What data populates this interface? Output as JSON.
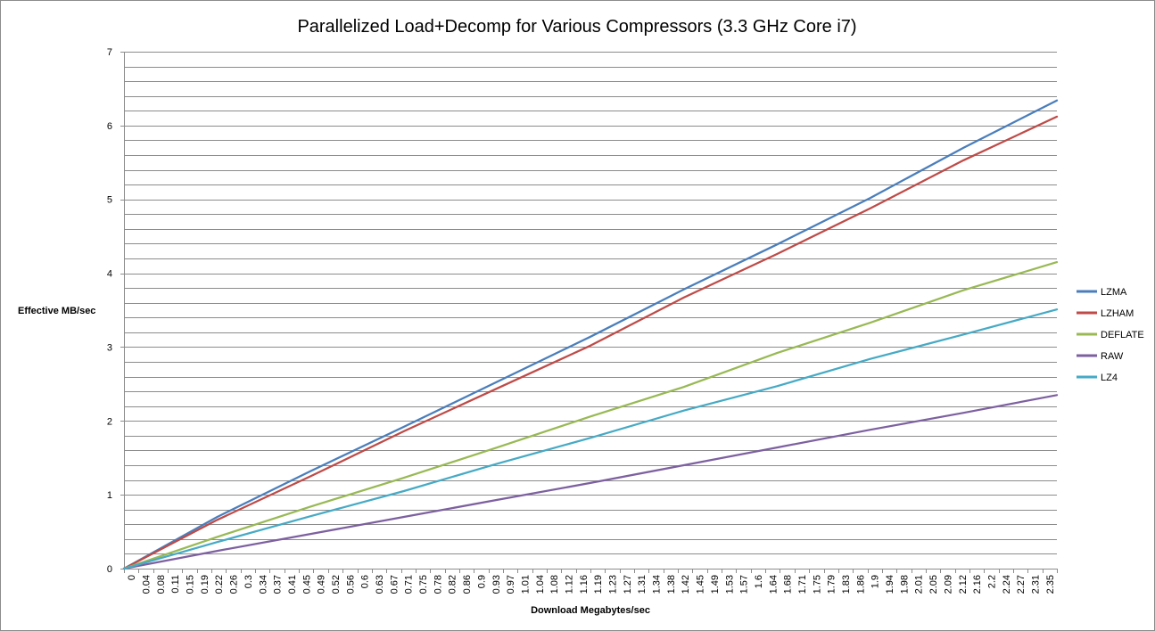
{
  "chart_data": {
    "type": "line",
    "title": "Parallelized Load+Decomp for Various Compressors (3.3 GHz Core i7)",
    "xlabel": "Download Megabytes/sec",
    "ylabel": "Effective MB/sec",
    "ylim": [
      0,
      7
    ],
    "yticks": [
      0,
      1,
      2,
      3,
      4,
      5,
      6,
      7
    ],
    "y_minor_step": 0.2,
    "xlim": [
      0,
      2.35
    ],
    "xtick_labels": [
      "0",
      "0.04",
      "0.08",
      "0.11",
      "0.15",
      "0.19",
      "0.22",
      "0.26",
      "0.3",
      "0.34",
      "0.37",
      "0.41",
      "0.45",
      "0.49",
      "0.52",
      "0.56",
      "0.6",
      "0.63",
      "0.67",
      "0.71",
      "0.75",
      "0.78",
      "0.82",
      "0.86",
      "0.9",
      "0.93",
      "0.97",
      "1.01",
      "1.04",
      "1.08",
      "1.12",
      "1.16",
      "1.19",
      "1.23",
      "1.27",
      "1.31",
      "1.34",
      "1.38",
      "1.42",
      "1.45",
      "1.49",
      "1.53",
      "1.57",
      "1.6",
      "1.64",
      "1.68",
      "1.71",
      "1.75",
      "1.79",
      "1.83",
      "1.86",
      "1.9",
      "1.94",
      "1.98",
      "2.01",
      "2.05",
      "2.09",
      "2.12",
      "2.16",
      "2.2",
      "2.24",
      "2.27",
      "2.31",
      "2.35"
    ],
    "legend_position": "right",
    "series": [
      {
        "name": "LZMA",
        "color": "#4a7ebb",
        "x": [
          0,
          0.235,
          0.47,
          0.705,
          0.94,
          1.175,
          1.41,
          1.645,
          1.88,
          2.115,
          2.35
        ],
        "values": [
          0,
          0.7,
          1.32,
          1.92,
          2.53,
          3.14,
          3.78,
          4.39,
          5.02,
          5.7,
          6.34
        ]
      },
      {
        "name": "LZHAM",
        "color": "#be4b48",
        "x": [
          0,
          0.235,
          0.47,
          0.705,
          0.94,
          1.175,
          1.41,
          1.645,
          1.88,
          2.115,
          2.35
        ],
        "values": [
          0,
          0.66,
          1.25,
          1.86,
          2.44,
          3.02,
          3.67,
          4.26,
          4.88,
          5.53,
          6.12
        ]
      },
      {
        "name": "DEFLATE",
        "color": "#98b954",
        "x": [
          0,
          0.235,
          0.47,
          0.705,
          0.94,
          1.175,
          1.41,
          1.645,
          1.88,
          2.115,
          2.35
        ],
        "values": [
          0,
          0.43,
          0.84,
          1.23,
          1.64,
          2.06,
          2.46,
          2.92,
          3.33,
          3.77,
          4.15
        ]
      },
      {
        "name": "RAW",
        "color": "#7d60a0",
        "x": [
          0,
          0.235,
          0.47,
          0.705,
          0.94,
          1.175,
          1.41,
          1.645,
          1.88,
          2.115,
          2.35
        ],
        "values": [
          0,
          0.24,
          0.47,
          0.7,
          0.93,
          1.16,
          1.4,
          1.64,
          1.88,
          2.11,
          2.35
        ]
      },
      {
        "name": "LZ4",
        "color": "#46aac5",
        "x": [
          0,
          0.235,
          0.47,
          0.705,
          0.94,
          1.175,
          1.41,
          1.645,
          1.88,
          2.115,
          2.35
        ],
        "values": [
          0,
          0.36,
          0.71,
          1.05,
          1.42,
          1.77,
          2.14,
          2.47,
          2.84,
          3.17,
          3.51
        ]
      }
    ]
  }
}
